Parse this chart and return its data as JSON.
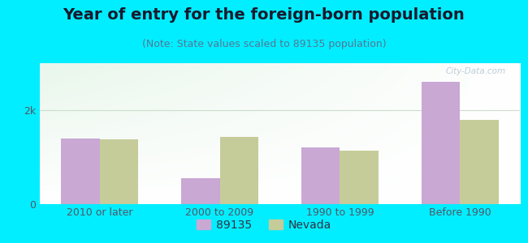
{
  "title": "Year of entry for the foreign-born population",
  "subtitle": "(Note: State values scaled to 89135 population)",
  "categories": [
    "2010 or later",
    "2000 to 2009",
    "1990 to 1999",
    "Before 1990"
  ],
  "values_89135": [
    1400,
    550,
    1200,
    2600
  ],
  "values_nevada": [
    1380,
    1430,
    1130,
    1800
  ],
  "color_89135": "#c9a8d4",
  "color_nevada": "#c5cc99",
  "background_outer": "#00eeff",
  "yticks": [
    0,
    2000
  ],
  "ytick_labels": [
    "0",
    "2k"
  ],
  "ylim": [
    0,
    3000
  ],
  "bar_width": 0.32,
  "legend_label_1": "89135",
  "legend_label_2": "Nevada",
  "title_fontsize": 14,
  "subtitle_fontsize": 9,
  "tick_fontsize": 9,
  "watermark": "City-Data.com"
}
